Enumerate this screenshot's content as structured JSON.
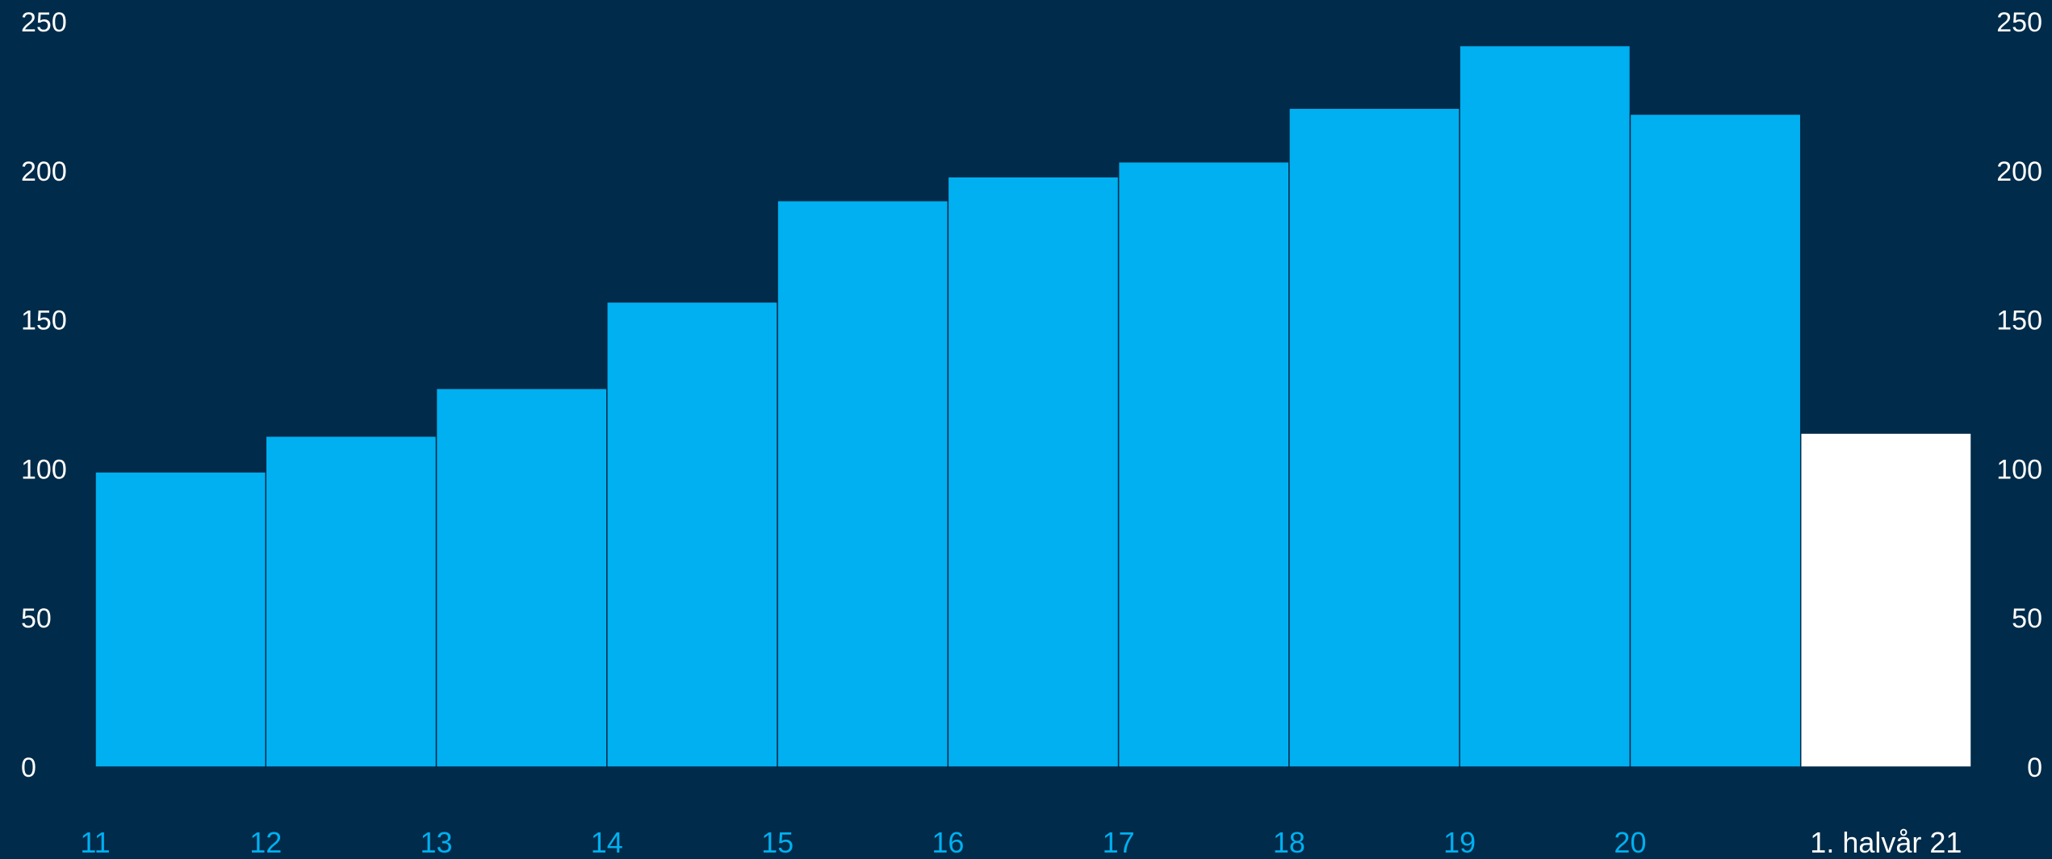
{
  "chart_data": {
    "type": "bar",
    "title": "",
    "xlabel": "",
    "ylabel": "",
    "ylim": [
      0,
      250
    ],
    "yticks": [
      0,
      50,
      100,
      150,
      200,
      250
    ],
    "categories": [
      "11",
      "12",
      "13",
      "14",
      "15",
      "16",
      "17",
      "18",
      "19",
      "20",
      "1. halvår 21"
    ],
    "values": [
      99,
      111,
      127,
      156,
      190,
      198,
      203,
      221,
      242,
      219,
      112
    ],
    "grid": false,
    "legend": "none",
    "colors": {
      "background": "#002b4a",
      "bar": "#00b0f0",
      "highlight_bar": "#ffffff",
      "axis_text": "#ffffff",
      "category_text": "#00b0f0",
      "highlight_category_text": "#ffffff"
    },
    "highlight_index": 10
  }
}
